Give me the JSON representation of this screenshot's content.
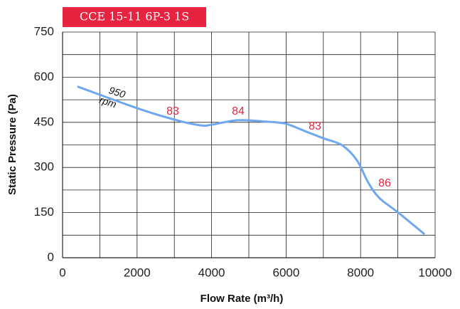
{
  "chart_data": {
    "type": "line",
    "title": "CCE 15-11 6P-3 1S",
    "xlabel": "Flow Rate (m³/h)",
    "ylabel": "Static Pressure (Pa)",
    "x": [
      420,
      2000,
      3000,
      3700,
      4000,
      4700,
      5500,
      6000,
      6500,
      7000,
      7500,
      7900,
      8200,
      8500,
      9000,
      9700
    ],
    "series": [
      {
        "name": "950 rpm",
        "color": "#6fa8f0",
        "values": [
          568,
          497,
          459,
          440,
          442,
          457,
          452,
          445,
          421,
          397,
          374,
          324,
          251,
          199,
          151,
          80
        ]
      }
    ],
    "annotations": [
      "83",
      "84",
      "83",
      "86"
    ],
    "annotation_color": "#e8233f",
    "title_color": "#e8233f",
    "xlim": [
      0,
      10000
    ],
    "xticks": [
      0,
      2000,
      4000,
      6000,
      8000,
      10000
    ],
    "ylim": [
      0,
      750
    ],
    "yticks": [
      0,
      150,
      300,
      450,
      600,
      750
    ],
    "grid": true
  }
}
